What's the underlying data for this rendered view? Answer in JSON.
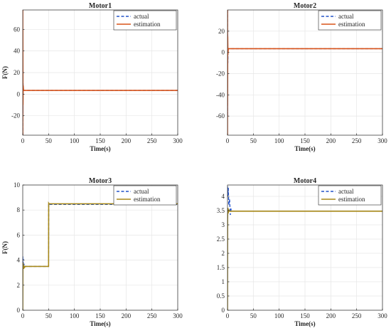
{
  "chart_data": [
    {
      "type": "line",
      "title": "Motor1",
      "xlabel": "Time(s)",
      "ylabel": "F(N)",
      "xlim": [
        0,
        300
      ],
      "ylim": [
        -38,
        78
      ],
      "xticks": [
        0,
        50,
        100,
        150,
        200,
        250,
        300
      ],
      "yticks": [
        -20,
        0,
        20,
        40,
        60
      ],
      "grid": true,
      "legend": "top-right",
      "series": [
        {
          "name": "actual",
          "style": "dashed",
          "color": "#2353c9",
          "x": [
            0,
            0.1,
            0.3,
            0.6,
            1.0,
            300
          ],
          "y": [
            -38,
            30,
            -18,
            10,
            3.5,
            3.5
          ]
        },
        {
          "name": "estimation",
          "style": "solid",
          "color": "#d95319",
          "x": [
            0,
            0.05,
            0.15,
            0.4,
            0.8,
            1.5,
            300
          ],
          "y": [
            78,
            -38,
            60,
            -10,
            8,
            3.5,
            3.5
          ]
        }
      ]
    },
    {
      "type": "line",
      "title": "Motor2",
      "xlabel": "Time(s)",
      "ylabel": "",
      "xlim": [
        0,
        300
      ],
      "ylim": [
        -78,
        40
      ],
      "xticks": [
        0,
        50,
        100,
        150,
        200,
        250,
        300
      ],
      "yticks": [
        -60,
        -40,
        -20,
        0,
        20
      ],
      "grid": true,
      "legend": "top-right",
      "series": [
        {
          "name": "actual",
          "style": "dashed",
          "color": "#2353c9",
          "x": [
            0,
            0.1,
            0.3,
            0.6,
            1.0,
            300
          ],
          "y": [
            40,
            -60,
            20,
            -10,
            3.5,
            3.5
          ]
        },
        {
          "name": "estimation",
          "style": "solid",
          "color": "#d95319",
          "x": [
            0,
            0.05,
            0.15,
            0.4,
            0.8,
            1.5,
            300
          ],
          "y": [
            -78,
            40,
            -50,
            15,
            -2,
            3.5,
            3.5
          ]
        }
      ]
    },
    {
      "type": "line",
      "title": "Motor3",
      "xlabel": "Time(s)",
      "ylabel": "F(N)",
      "xlim": [
        0,
        300
      ],
      "ylim": [
        0,
        10
      ],
      "xticks": [
        0,
        50,
        100,
        150,
        200,
        250,
        300
      ],
      "yticks": [
        0,
        2,
        4,
        6,
        8,
        10
      ],
      "grid": true,
      "legend": "top-right",
      "series": [
        {
          "name": "actual",
          "style": "dashed",
          "color": "#2353c9",
          "x": [
            0,
            0.3,
            0.8,
            1.5,
            2.5,
            4,
            6,
            50,
            50.2,
            51,
            300
          ],
          "y": [
            4.3,
            3.6,
            4.1,
            3.3,
            3.7,
            3.5,
            3.5,
            3.5,
            8.5,
            8.45,
            8.45
          ]
        },
        {
          "name": "estimation",
          "style": "solid",
          "color": "#a8891a",
          "x": [
            0,
            0.2,
            0.5,
            1.0,
            1.8,
            3,
            5,
            50,
            50.2,
            51,
            300
          ],
          "y": [
            0,
            3.2,
            3.8,
            3.3,
            3.6,
            3.4,
            3.5,
            3.5,
            8.55,
            8.5,
            8.5
          ]
        }
      ]
    },
    {
      "type": "line",
      "title": "Motor4",
      "xlabel": "Time(s)",
      "ylabel": "",
      "xlim": [
        0,
        300
      ],
      "ylim": [
        0,
        4.4
      ],
      "xticks": [
        0,
        50,
        100,
        150,
        200,
        250,
        300
      ],
      "yticks": [
        0,
        0.5,
        1,
        1.5,
        2,
        2.5,
        3,
        3.5,
        4
      ],
      "grid": true,
      "legend": "top-right",
      "series": [
        {
          "name": "actual",
          "style": "dashed",
          "color": "#2353c9",
          "x": [
            0,
            0.5,
            1.5,
            2.5,
            4,
            5.5,
            7,
            10,
            300
          ],
          "y": [
            4.35,
            4.0,
            4.3,
            3.7,
            3.9,
            3.35,
            3.55,
            3.48,
            3.48
          ]
        },
        {
          "name": "estimation",
          "style": "solid",
          "color": "#a8891a",
          "x": [
            0,
            0.2,
            0.6,
            1.2,
            2.5,
            4,
            300
          ],
          "y": [
            0,
            3.2,
            3.6,
            3.4,
            3.52,
            3.48,
            3.48
          ]
        }
      ]
    }
  ]
}
